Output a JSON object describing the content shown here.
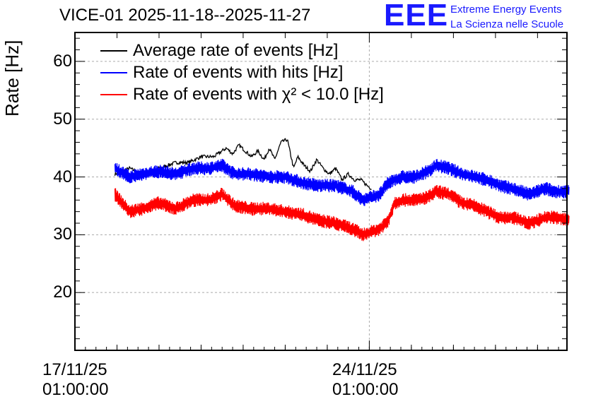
{
  "chart_data": {
    "type": "line",
    "title": "VICE-01 2025-11-18--2025-11-27",
    "xlabel": "",
    "ylabel": "Rate [Hz]",
    "xlim": [
      0,
      11.7
    ],
    "ylim": [
      10,
      65
    ],
    "y_ticks": [
      20,
      30,
      40,
      50,
      60
    ],
    "x_tick_labels": [
      {
        "x": 0,
        "line1": "17/11/25",
        "line2": "01:00:00"
      },
      {
        "x": 7,
        "line1": "24/11/25",
        "line2": "01:00:00"
      }
    ],
    "grid": true,
    "legend_position": "top-left",
    "series": [
      {
        "name": "Average rate of events [Hz]",
        "color": "#000000",
        "x": [
          0.95,
          1.3,
          1.6,
          2.0,
          2.4,
          2.7,
          3.0,
          3.3,
          3.6,
          3.75,
          3.9,
          4.05,
          4.2,
          4.35,
          4.5,
          4.62,
          4.75,
          4.9,
          5.05,
          5.2,
          5.3,
          5.45,
          5.6,
          5.75,
          5.9,
          6.05,
          6.2,
          6.35,
          6.5,
          6.65,
          6.8,
          6.95,
          7.05
        ],
        "values": [
          40.5,
          41.5,
          40.5,
          41.5,
          42.5,
          42.5,
          43.5,
          43.5,
          45,
          44,
          45.5,
          44.5,
          43.5,
          44.5,
          43,
          45,
          43,
          46,
          46.5,
          41.5,
          43.5,
          42,
          41,
          43,
          41.5,
          40.5,
          41.5,
          39.5,
          40.5,
          39.5,
          39.5,
          38.5,
          38
        ]
      },
      {
        "name": "Rate of events with hits [Hz]",
        "color": "#0000ff",
        "x": [
          0.95,
          1.3,
          1.6,
          2.0,
          2.4,
          2.8,
          3.2,
          3.5,
          3.8,
          4.2,
          4.6,
          5.0,
          5.4,
          5.8,
          6.2,
          6.6,
          6.85,
          7.05,
          7.25,
          7.45,
          7.6,
          7.8,
          8.1,
          8.4,
          8.6,
          8.9,
          9.2,
          9.5,
          9.8,
          10.1,
          10.4,
          10.8,
          11.0,
          11.2,
          11.4,
          11.75
        ],
        "values": [
          41.5,
          40,
          40.5,
          41,
          40.5,
          41.5,
          41.5,
          42,
          40.5,
          40.5,
          40,
          40,
          39,
          38.5,
          38.5,
          37.5,
          36,
          36.5,
          37,
          39,
          39.5,
          40,
          40,
          41,
          42,
          41.5,
          40.5,
          40,
          39.5,
          38.5,
          38,
          37,
          37.5,
          38,
          37.5,
          37.5
        ]
      },
      {
        "name": "Rate of events with χ² < 10.0 [Hz]",
        "color": "#ff0000",
        "x": [
          0.95,
          1.3,
          1.6,
          2.0,
          2.4,
          2.8,
          3.2,
          3.5,
          3.8,
          4.2,
          4.6,
          5.0,
          5.4,
          5.8,
          6.2,
          6.6,
          6.85,
          7.05,
          7.25,
          7.45,
          7.6,
          7.8,
          8.1,
          8.4,
          8.6,
          8.9,
          9.2,
          9.5,
          9.8,
          10.1,
          10.4,
          10.8,
          11.0,
          11.2,
          11.4,
          11.75
        ],
        "values": [
          37,
          34,
          34.5,
          35.5,
          34.5,
          36,
          36,
          37,
          35,
          34.5,
          34.5,
          34,
          33.5,
          32.5,
          32,
          31,
          30,
          30.5,
          31,
          32.5,
          35.5,
          36,
          36,
          36.5,
          37.5,
          37,
          35.5,
          35,
          34,
          33,
          33,
          32,
          32.5,
          33,
          33,
          32.5
        ]
      }
    ],
    "legend": [
      {
        "label": "Average rate of events [Hz]",
        "color": "#000000"
      },
      {
        "label": "Rate of events with hits [Hz]",
        "color": "#0000ff"
      },
      {
        "label": "Rate of events with χ² < 10.0 [Hz]",
        "color": "#ff0000"
      }
    ]
  },
  "logo": {
    "mark": "EEE",
    "line1": "Extreme Energy Events",
    "line2": "La Scienza nelle Scuole",
    "color": "#1a1aff"
  }
}
